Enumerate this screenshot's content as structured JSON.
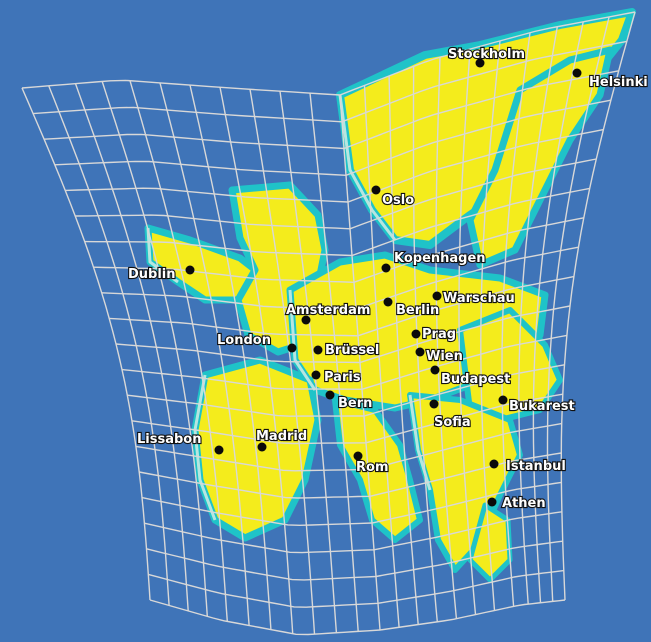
{
  "map": {
    "colors": {
      "background": "#3f74b8",
      "land": "#f4ec1c",
      "coast_outer": "#1fc3c8",
      "coast_inner": "#b6e6e0",
      "grid": "#d8d8d8",
      "city_marker": "#0a0a0a"
    },
    "cities": [
      {
        "id": "stockholm",
        "name": "Stockholm"
      },
      {
        "id": "helsinki",
        "name": "Helsinki"
      },
      {
        "id": "oslo",
        "name": "Oslo"
      },
      {
        "id": "kopenhagen",
        "name": "Kopenhagen"
      },
      {
        "id": "dublin",
        "name": "Dublin"
      },
      {
        "id": "amsterdam",
        "name": "Amsterdam"
      },
      {
        "id": "berlin",
        "name": "Berlin"
      },
      {
        "id": "warschau",
        "name": "Warschau"
      },
      {
        "id": "london",
        "name": "London"
      },
      {
        "id": "brussel",
        "name": "Brüssel"
      },
      {
        "id": "prag",
        "name": "Prag"
      },
      {
        "id": "wien",
        "name": "Wien"
      },
      {
        "id": "paris",
        "name": "Paris"
      },
      {
        "id": "budapest",
        "name": "Budapest"
      },
      {
        "id": "bern",
        "name": "Bern"
      },
      {
        "id": "bukarest",
        "name": "Bukarest"
      },
      {
        "id": "sofia",
        "name": "Sofia"
      },
      {
        "id": "lissabon",
        "name": "Lissabon"
      },
      {
        "id": "madrid",
        "name": "Madrid"
      },
      {
        "id": "rom",
        "name": "Rom"
      },
      {
        "id": "istanbul",
        "name": "Istanbul"
      },
      {
        "id": "athen",
        "name": "Athen"
      }
    ]
  }
}
